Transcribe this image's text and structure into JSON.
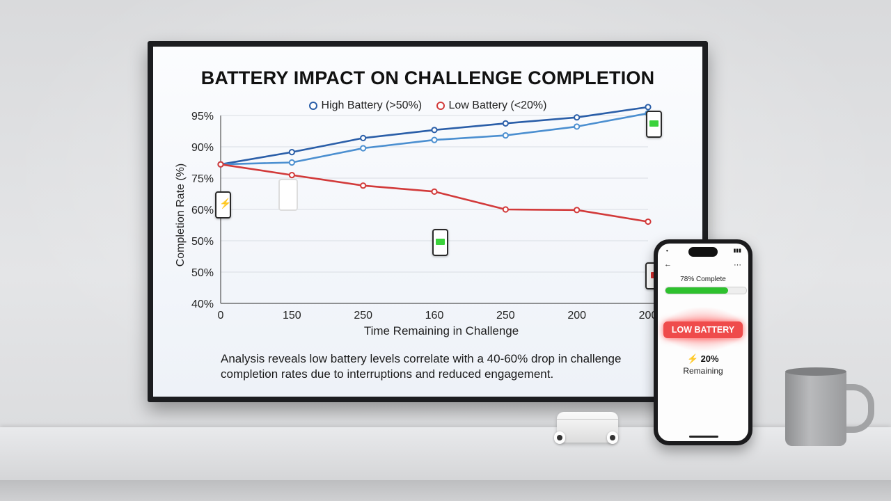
{
  "chart_data": {
    "type": "line",
    "title": "BATTERY IMPACT ON CHALLENGE COMPLETION",
    "xlabel": "Time Remaining in Challenge",
    "ylabel": "Completion Rate (%)",
    "x_tick_labels": [
      "0",
      "150",
      "250",
      "160",
      "250",
      "200",
      "200"
    ],
    "y_tick_labels": [
      "95%",
      "90%",
      "75%",
      "60%",
      "50%",
      "50%",
      "40%"
    ],
    "legend_placement": "top-center",
    "grid": true,
    "series": [
      {
        "name": "High Battery (>50%)",
        "color": "#2a5ea8",
        "values": [
          0.74,
          0.805,
          0.88,
          0.923,
          0.958,
          0.99,
          1.045
        ]
      },
      {
        "name": "",
        "color": "#4b8fd0",
        "values": [
          0.74,
          0.75,
          0.826,
          0.87,
          0.894,
          0.941,
          1.012
        ]
      },
      {
        "name": "Low Battery (<20%)",
        "color": "#d23a3a",
        "values": [
          0.74,
          0.683,
          0.627,
          0.595,
          0.5,
          0.497,
          0.435
        ]
      }
    ]
  },
  "caption": "Analysis reveals low battery levels correlate with a 40-60% drop in challenge completion rates due to interruptions and reduced engagement.",
  "phone": {
    "progress_label": "78% Complete",
    "progress_value": 0.78,
    "alert": "LOW BATTERY",
    "remaining_pct": "20%",
    "remaining_label": "Remaining"
  }
}
